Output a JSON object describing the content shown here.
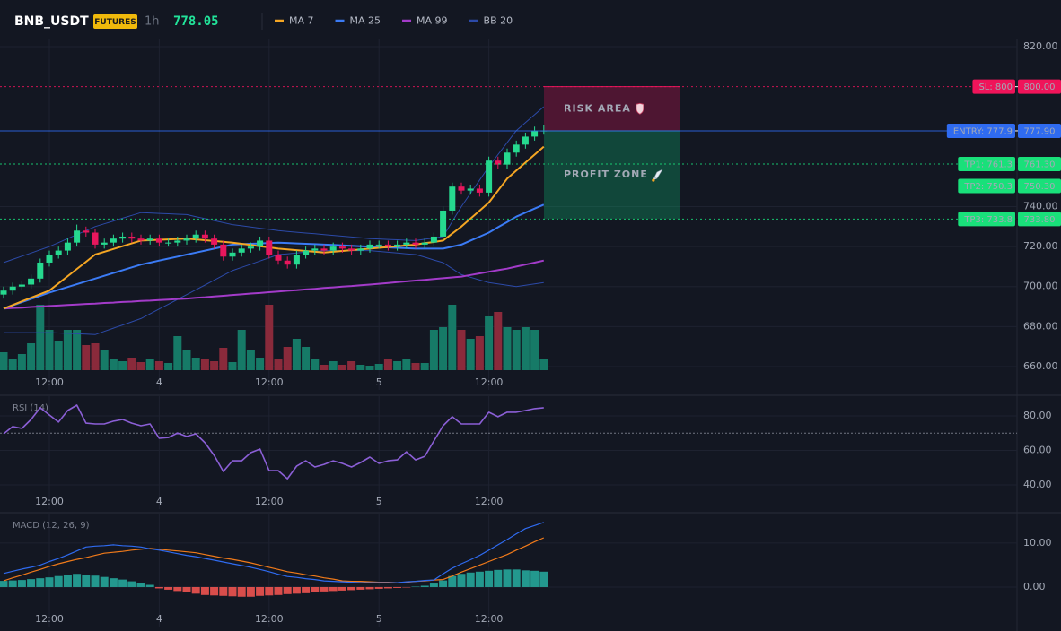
{
  "header": {
    "symbol": "BNB_USDT",
    "badge": "FUTURES",
    "interval": "1h",
    "price": 778.05
  },
  "chart_data": [
    {
      "type": "candlestick",
      "categories": [
        null,
        null,
        null,
        null,
        null,
        "12:00",
        null,
        null,
        null,
        null,
        null,
        null,
        null,
        null,
        null,
        null,
        null,
        "4",
        null,
        null,
        null,
        null,
        null,
        null,
        null,
        null,
        null,
        null,
        null,
        "12:00",
        null,
        null,
        null,
        null,
        null,
        null,
        null,
        null,
        null,
        null,
        null,
        "5",
        null,
        null,
        null,
        null,
        null,
        null,
        null,
        null,
        null,
        null,
        null,
        "12:00",
        null,
        null,
        null,
        null,
        null,
        null
      ],
      "open": [
        696,
        698,
        700,
        701,
        704,
        712,
        716,
        718,
        722,
        728,
        727,
        721,
        722,
        724,
        725,
        724,
        723,
        724,
        722,
        722,
        723,
        724,
        726,
        724,
        721,
        715,
        717,
        719,
        720,
        723,
        716,
        713,
        711,
        716,
        718,
        719,
        718,
        720,
        719,
        718,
        719,
        721,
        721,
        720,
        721,
        722,
        721,
        722,
        725,
        738,
        750,
        748,
        749,
        747,
        763,
        761,
        767,
        771,
        775,
        778
      ],
      "high": [
        700,
        702,
        703,
        706,
        714,
        718,
        720,
        724,
        731,
        730,
        729,
        724,
        726,
        727,
        727,
        726,
        726,
        726,
        724,
        725,
        726,
        728,
        728,
        726,
        723,
        719,
        721,
        722,
        725,
        725,
        718,
        715,
        718,
        720,
        721,
        721,
        722,
        722,
        721,
        721,
        723,
        723,
        723,
        723,
        724,
        724,
        724,
        727,
        740,
        752,
        752,
        751,
        751,
        765,
        765,
        769,
        773,
        777,
        780,
        781
      ],
      "low": [
        694,
        696,
        698,
        699,
        702,
        710,
        714,
        716,
        720,
        725,
        719,
        719,
        720,
        722,
        722,
        721,
        721,
        720,
        720,
        720,
        721,
        722,
        722,
        719,
        713,
        713,
        715,
        717,
        718,
        714,
        711,
        709,
        709,
        714,
        716,
        716,
        716,
        717,
        716,
        716,
        717,
        719,
        718,
        718,
        719,
        719,
        719,
        720,
        723,
        736,
        746,
        746,
        745,
        745,
        759,
        759,
        765,
        769,
        773,
        776
      ],
      "close": [
        698,
        700,
        701,
        704,
        712,
        716,
        718,
        722,
        728,
        727,
        721,
        722,
        724,
        725,
        724,
        723,
        724,
        722,
        722,
        723,
        724,
        726,
        724,
        721,
        715,
        717,
        719,
        720,
        723,
        716,
        713,
        711,
        716,
        718,
        719,
        718,
        720,
        719,
        718,
        719,
        721,
        721,
        720,
        721,
        722,
        721,
        722,
        725,
        738,
        750,
        748,
        749,
        747,
        763,
        761,
        767,
        771,
        775,
        778,
        778.05
      ],
      "up_color": "#26d98f",
      "down_color": "#e8175d",
      "volume": {
        "values": [
          20,
          12,
          18,
          30,
          73,
          45,
          33,
          45,
          45,
          28,
          30,
          22,
          12,
          10,
          14,
          9,
          12,
          10,
          8,
          38,
          22,
          14,
          12,
          10,
          25,
          9,
          45,
          22,
          14,
          73,
          12,
          26,
          35,
          26,
          12,
          6,
          10,
          6,
          10,
          6,
          5,
          7,
          12,
          10,
          12,
          8,
          8,
          45,
          48,
          73,
          45,
          35,
          38,
          60,
          65,
          48,
          45,
          48,
          45,
          12
        ],
        "ylim": [
          0,
          100
        ],
        "up_color": "#167a67",
        "down_color": "#8a2a3b"
      },
      "series": [
        {
          "name": "MA 7",
          "color": "#f5a623",
          "values": [
            689,
            690.8,
            692.6,
            694.4,
            696.2,
            698,
            701.6,
            705.2,
            708.8,
            712.4,
            716,
            717.4,
            718.8,
            720.2,
            721.6,
            723,
            723.2,
            723.4,
            723.6,
            723.8,
            724,
            723.6,
            723.2,
            722.8,
            722.4,
            722,
            721.4,
            720.8,
            720.2,
            719.6,
            719,
            718.6,
            718.2,
            717.8,
            717.4,
            717,
            717.4,
            717.8,
            718.2,
            718.6,
            719,
            719.4,
            719.8,
            720.2,
            720.6,
            721,
            721.7,
            722.3,
            723,
            726.5,
            730,
            734,
            738,
            742,
            748,
            754,
            758,
            762,
            766,
            770
          ]
        },
        {
          "name": "MA 25",
          "color": "#3b7bf5",
          "values": [
            689,
            690.6,
            692.2,
            693.8,
            695.4,
            697,
            698.4,
            699.8,
            701.2,
            702.6,
            704,
            705.4,
            706.8,
            708.2,
            709.6,
            711,
            712,
            713,
            714,
            715,
            716,
            717,
            718,
            719,
            720,
            721,
            721.2,
            721.4,
            721.6,
            721.8,
            722,
            721.8,
            721.6,
            721.4,
            721.2,
            721,
            720.8,
            720.6,
            720.4,
            720.2,
            720,
            719.8,
            719.6,
            719.4,
            719.2,
            719,
            719,
            719,
            719,
            720,
            721,
            723,
            725,
            727,
            729.7,
            732.3,
            735,
            737,
            739,
            741
          ]
        },
        {
          "name": "MA 99",
          "color": "#a33bc9",
          "values": [
            689,
            689.3,
            689.5,
            689.8,
            690,
            690.3,
            690.5,
            690.8,
            691,
            691.3,
            691.5,
            691.8,
            692,
            692.3,
            692.5,
            692.8,
            693,
            693.3,
            693.5,
            693.8,
            694,
            694.4,
            694.7,
            695.1,
            695.4,
            695.8,
            696.1,
            696.5,
            696.8,
            697.2,
            697.5,
            697.9,
            698.2,
            698.6,
            698.9,
            699.3,
            699.6,
            700,
            700.3,
            700.7,
            701,
            701.4,
            701.8,
            702.2,
            702.6,
            703,
            703.4,
            703.8,
            704.2,
            704.6,
            705,
            705.8,
            706.6,
            707.4,
            708.2,
            709,
            710,
            711,
            712,
            713
          ]
        },
        {
          "name": "BB 20",
          "color": "#2c4aa8",
          "upper": [
            712,
            713.6,
            715.2,
            716.8,
            718.4,
            720,
            722,
            724,
            726,
            728,
            730,
            731.4,
            732.8,
            734.2,
            735.6,
            737,
            736.8,
            736.6,
            736.4,
            736.2,
            736,
            735,
            734,
            733,
            732,
            731,
            730.4,
            729.8,
            729.2,
            728.6,
            728,
            727.6,
            727.2,
            726.8,
            726.4,
            726,
            725.6,
            725.2,
            724.8,
            724.4,
            724,
            723.8,
            723.6,
            723.4,
            723.2,
            723,
            723.7,
            724.3,
            725,
            732.5,
            740,
            746.7,
            753.3,
            760,
            766,
            772,
            778,
            782,
            786,
            790
          ],
          "lower": [
            677,
            677,
            677,
            677,
            677,
            677,
            676.8,
            676.6,
            676.4,
            676.2,
            676,
            677.6,
            679.2,
            680.8,
            682.4,
            684,
            686.4,
            688.8,
            691.2,
            693.6,
            696,
            698.4,
            700.8,
            703.2,
            705.6,
            708,
            709.6,
            711.2,
            712.8,
            714.4,
            716,
            716.4,
            716.8,
            717.2,
            717.6,
            718,
            718,
            718,
            718,
            718,
            718,
            717.6,
            717.2,
            716.8,
            716.4,
            716,
            714.7,
            713.3,
            712,
            709,
            706,
            704.7,
            703.3,
            702,
            701.3,
            700.7,
            700,
            700.7,
            701.3,
            702
          ]
        }
      ],
      "levels": [
        {
          "label": "SL: 800",
          "value": 800,
          "value_label": "800.00",
          "color": "#f0145a",
          "text_color": "#ffffff",
          "style": "dotted"
        },
        {
          "label": "ENTRY: 777.9",
          "value": 777.9,
          "value_label": "777.90",
          "color": "#2f6bf0",
          "text_color": "#ffffff",
          "style": "solid"
        },
        {
          "label": "TP1: 761.3",
          "value": 761.3,
          "value_label": "761.30",
          "color": "#19e07a",
          "text_color": "#0c1f14",
          "style": "dotted"
        },
        {
          "label": "TP2: 750.3",
          "value": 750.3,
          "value_label": "750.30",
          "color": "#19e07a",
          "text_color": "#0c1f14",
          "style": "dotted"
        },
        {
          "label": "TP3: 733.8",
          "value": 733.8,
          "value_label": "733.80",
          "color": "#19e07a",
          "text_color": "#0c1f14",
          "style": "dotted"
        }
      ],
      "zones": [
        {
          "label": "RISK AREA",
          "from": 800,
          "to": 777.9,
          "color": "#e8175d",
          "icon": "shield"
        },
        {
          "label": "PROFIT ZONE",
          "from": 777.9,
          "to": 733.8,
          "color": "#10c77a",
          "icon": "rocket"
        }
      ],
      "ylim": [
        657.3,
        823.6
      ],
      "yticks": [
        {
          "value": 820,
          "label": "820.00"
        },
        {
          "value": 740,
          "label": "740.00"
        },
        {
          "value": 720,
          "label": "720.00"
        },
        {
          "value": 700,
          "label": "700.00"
        },
        {
          "value": 680,
          "label": "680.00"
        },
        {
          "value": 660,
          "label": "660.00"
        }
      ],
      "grid": true
    },
    {
      "type": "line",
      "title": "RSI (14)",
      "color": "#8b5fd6",
      "values": [
        69.6,
        73.8,
        72.7,
        77.9,
        84.7,
        80.5,
        76.4,
        83.1,
        86.2,
        75.8,
        75.3,
        75.3,
        76.9,
        77.9,
        75.8,
        74.3,
        75.3,
        67.0,
        67.5,
        70.1,
        68.1,
        69.6,
        64.4,
        57.1,
        47.8,
        54.0,
        54.0,
        58.7,
        60.8,
        48.3,
        48.3,
        43.6,
        50.9,
        54.0,
        50.4,
        51.9,
        54.0,
        52.5,
        50.4,
        53.0,
        56.1,
        52.5,
        54.0,
        54.5,
        59.2,
        54.5,
        56.6,
        65.5,
        74.3,
        79.5,
        75.3,
        75.3,
        75.3,
        82.1,
        79.5,
        82.1,
        82.1,
        83.1,
        84.2,
        84.7
      ],
      "level": 70,
      "level_color": "#8a8f9c",
      "ylim": [
        36.4,
        91.4
      ],
      "yticks": [
        {
          "value": 80,
          "label": "80.00"
        },
        {
          "value": 60,
          "label": "60.00"
        },
        {
          "value": 40,
          "label": "40.00"
        }
      ],
      "grid": true
    },
    {
      "type": "macd",
      "title": "MACD (12, 26, 9)",
      "macd": {
        "color": "#2f6bf0",
        "values": [
          3.1,
          3.6,
          4.1,
          4.5,
          5.0,
          5.8,
          6.5,
          7.3,
          8.2,
          9.1,
          9.3,
          9.4,
          9.6,
          9.4,
          9.3,
          9.1,
          8.7,
          8.4,
          8.0,
          7.6,
          7.2,
          6.9,
          6.5,
          6.1,
          5.7,
          5.3,
          4.9,
          4.5,
          4.0,
          3.5,
          2.9,
          2.4,
          2.2,
          1.9,
          1.7,
          1.4,
          1.3,
          1.2,
          1.1,
          1.0,
          1.0,
          1.0,
          1.0,
          1.0,
          1.2,
          1.3,
          1.5,
          1.6,
          3.0,
          4.3,
          5.3,
          6.2,
          7.2,
          8.4,
          9.6,
          10.8,
          12.1,
          13.3,
          14.0,
          14.7
        ]
      },
      "signal": {
        "color": "#f07a1a",
        "values": [
          1.4,
          2.1,
          2.7,
          3.4,
          4.0,
          4.7,
          5.3,
          5.8,
          6.3,
          6.7,
          7.2,
          7.7,
          7.9,
          8.1,
          8.4,
          8.6,
          8.8,
          8.6,
          8.4,
          8.2,
          8.0,
          7.8,
          7.4,
          7.0,
          6.6,
          6.3,
          5.9,
          5.5,
          5.0,
          4.5,
          4.0,
          3.5,
          3.2,
          2.8,
          2.5,
          2.1,
          1.8,
          1.4,
          1.3,
          1.3,
          1.2,
          1.1,
          1.1,
          1.0,
          1.1,
          1.3,
          1.4,
          1.6,
          1.7,
          2.5,
          3.4,
          4.2,
          5.0,
          5.8,
          6.6,
          7.4,
          8.4,
          9.3,
          10.3,
          11.2
        ]
      },
      "histogram": {
        "up_color": "#26a69a",
        "down_color": "#ef5350",
        "values": [
          1.4,
          1.5,
          1.6,
          1.8,
          2.0,
          2.2,
          2.5,
          2.8,
          3.0,
          2.8,
          2.6,
          2.3,
          2.0,
          1.7,
          1.3,
          1.0,
          0.5,
          -0.3,
          -0.6,
          -0.9,
          -1.2,
          -1.5,
          -1.8,
          -1.9,
          -2.0,
          -2.1,
          -2.2,
          -2.2,
          -2.0,
          -1.9,
          -1.8,
          -1.6,
          -1.5,
          -1.4,
          -1.2,
          -1.0,
          -0.9,
          -0.8,
          -0.7,
          -0.6,
          -0.5,
          -0.4,
          -0.3,
          -0.2,
          -0.1,
          0.1,
          0.3,
          0.8,
          1.5,
          2.5,
          3.0,
          3.3,
          3.5,
          3.7,
          3.9,
          4.0,
          4.0,
          3.8,
          3.7,
          3.5
        ]
      },
      "ylim": [
        -5.1,
        16.5
      ],
      "yticks": [
        {
          "value": 10,
          "label": "10.00"
        },
        {
          "value": 0,
          "label": "0.00"
        }
      ],
      "grid": true
    }
  ]
}
